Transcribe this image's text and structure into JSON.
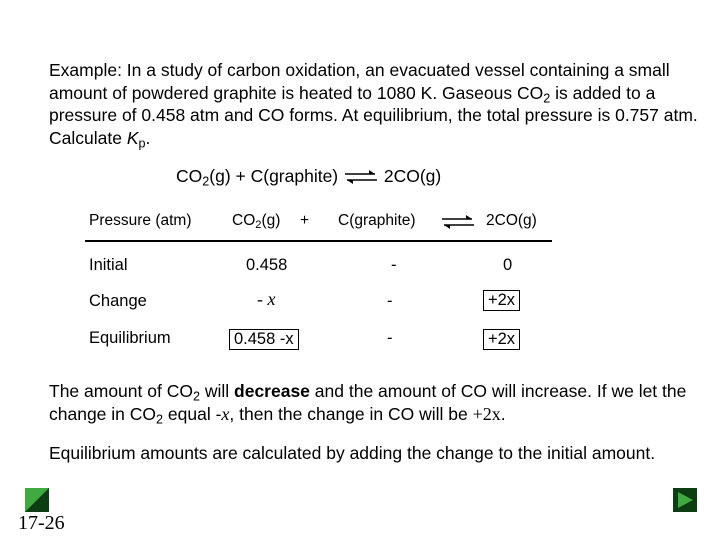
{
  "intro": {
    "p1": "Example:  In a study of carbon oxidation, an evacuated vessel containing a small amount of powdered graphite is heated to 1080 K. Gaseous CO",
    "p1_sub": "2",
    "p2": " is added to a pressure of 0.458 atm and CO forms. At equilibrium, the total pressure is 0.757 atm. Calculate ",
    "k": "K",
    "k_sub": "p",
    "p3": "."
  },
  "reaction": {
    "r1": "CO",
    "r1_sub": "2",
    "r1_state": "(g)",
    "plus": " + C(graphite) ",
    "product": "2CO",
    "product_state": "(g)"
  },
  "table": {
    "header": {
      "label": "Pressure (atm)",
      "co2": "CO",
      "co2_sub": "2",
      "co2_state": "(g)",
      "plus": "+",
      "graphite": "C(graphite)",
      "co": "2CO",
      "co_state": "(g)"
    },
    "rows": [
      {
        "label": "Initial",
        "co2": "0.458",
        "graphite": "-",
        "co": "0"
      },
      {
        "label": "Change",
        "co2": "- x",
        "graphite": "-",
        "co": "+2x"
      },
      {
        "label": "Equilibrium",
        "co2": "0.458  -x",
        "graphite": "-",
        "co": "+2x"
      }
    ]
  },
  "explain": {
    "a1": "The amount of CO",
    "a1_sub": "2",
    "a2": " will ",
    "bold1": "decrease",
    "a3": " and the amount of CO will increase. If we let the change in CO",
    "a3_sub": "2",
    "a4": " equal -",
    "x1": "x",
    "a5": ", then the change in CO will be ",
    "x2": "+2x",
    "a6": "."
  },
  "explain2": "Equilibrium amounts are calculated by adding the change to the initial amount.",
  "slide_number": "17-26",
  "colors": {
    "nav_dark": "#0d3d12",
    "nav_light": "#3faa3f"
  }
}
